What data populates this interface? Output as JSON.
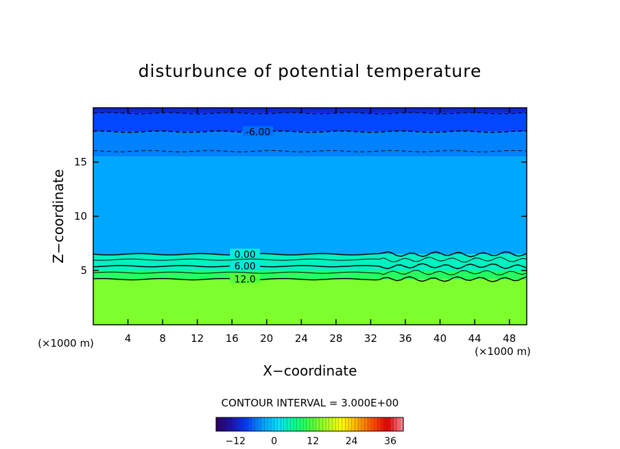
{
  "chart_data": {
    "type": "heatmap",
    "title": "disturbunce of potential temperature",
    "xlabel": "X−coordinate",
    "ylabel": "Z−coordinate",
    "x_unit": "(×1000 m)",
    "x_unit_right": "(×1000 m)",
    "xlim": [
      0,
      50
    ],
    "ylim": [
      0,
      20
    ],
    "x_ticks": [
      4,
      8,
      12,
      16,
      20,
      24,
      28,
      32,
      36,
      40,
      44,
      48
    ],
    "y_ticks": [
      5,
      10,
      15
    ],
    "contour_interval_label": "CONTOUR INTERVAL = 3.000E+00",
    "contour_labels": [
      {
        "text": "-6.00",
        "x": 19,
        "z": 17.8
      },
      {
        "text": "0.00",
        "x": 17.5,
        "z": 6.5
      },
      {
        "text": "6.00",
        "x": 17.5,
        "z": 5.4
      },
      {
        "text": "12.0",
        "x": 17.5,
        "z": 4.2
      }
    ],
    "field_layers": [
      {
        "z_from": 0,
        "z_to": 4.2,
        "value": 14
      },
      {
        "z_from": 4.2,
        "z_to": 5.0,
        "value": 9
      },
      {
        "z_from": 5.0,
        "z_to": 6.5,
        "value": 4
      },
      {
        "z_from": 6.5,
        "z_to": 15.5,
        "value": -3
      },
      {
        "z_from": 15.5,
        "z_to": 17.8,
        "value": -5
      },
      {
        "z_from": 17.8,
        "z_to": 19.5,
        "value": -8
      },
      {
        "z_from": 19.5,
        "z_to": 20,
        "value": -11
      }
    ],
    "colorbar": {
      "range": [
        -18,
        40
      ],
      "ticks": [
        -12,
        0,
        12,
        24,
        36
      ],
      "colors": [
        "#2a0060",
        "#1a10b0",
        "#0040ff",
        "#00a0ff",
        "#00e0ff",
        "#00ff90",
        "#40ff40",
        "#a0ff20",
        "#ffff00",
        "#ffb000",
        "#ff5000",
        "#e00000",
        "#ff90a0"
      ]
    }
  }
}
